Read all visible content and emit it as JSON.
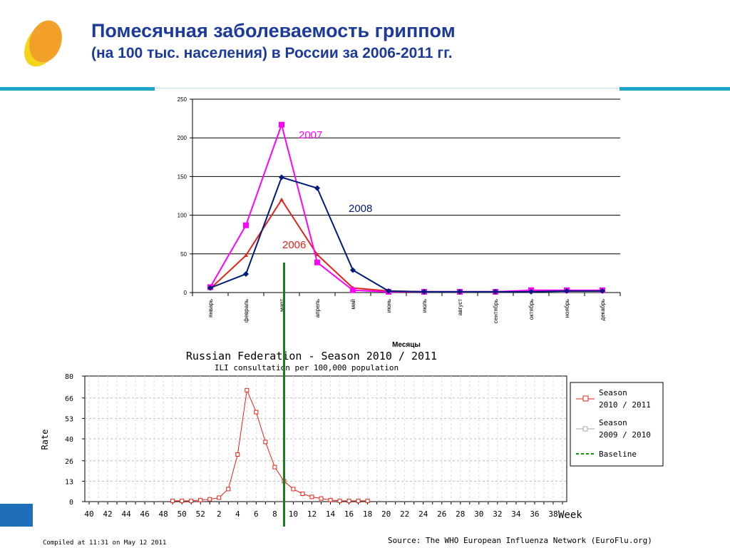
{
  "header": {
    "title": "Помесячная заболеваемость гриппом",
    "subtitle": "(на 100 тыс. населения) в России за 2006-2011 гг.",
    "logo_icon": "orange-yellow-leaf-logo"
  },
  "colors": {
    "title": "#1c3a9a",
    "band": "#1ea3c8",
    "series_2006": "#e2231a",
    "series_2007": "#ff00ff",
    "series_2008": "#001a7a",
    "season_2010_2011": "#e2231a",
    "season_2009_2010": "#aaaaaa",
    "baseline": "#009900",
    "marker_line": "#1e7d1e"
  },
  "chart_data": [
    {
      "type": "line",
      "title": "",
      "xlabel": "Месяцы",
      "ylabel": "",
      "ylim": [
        0,
        250
      ],
      "yticks": [
        "0",
        "50",
        "100",
        "150",
        "200",
        "250"
      ],
      "grid": "horizontal",
      "categories": [
        "январь",
        "февраль",
        "март",
        "апрель",
        "май",
        "июнь",
        "июль",
        "август",
        "сентябрь",
        "октябрь",
        "ноябрь",
        "декабрь"
      ],
      "series": [
        {
          "name": "2006",
          "values": [
            5,
            48,
            120,
            49,
            6,
            2,
            1,
            1,
            1,
            2,
            2,
            2
          ]
        },
        {
          "name": "2007",
          "values": [
            7,
            87,
            217,
            39,
            3,
            1,
            1,
            1,
            1,
            3,
            3,
            3
          ]
        },
        {
          "name": "2008",
          "values": [
            6,
            24,
            149,
            135,
            29,
            2,
            1,
            1,
            1,
            1,
            2,
            2
          ]
        }
      ]
    },
    {
      "type": "line",
      "title": "Russian Federation - Season 2010 / 2011",
      "subtitle": "ILI consultation per 100,000 population",
      "xlabel": "Week",
      "ylabel": "Rate",
      "ylim": [
        0,
        80
      ],
      "yticks": [
        "0",
        "13",
        "26",
        "40",
        "53",
        "66",
        "80"
      ],
      "xticks": [
        "40",
        "42",
        "44",
        "46",
        "48",
        "50",
        "52",
        "2",
        "4",
        "6",
        "8",
        "10",
        "12",
        "14",
        "16",
        "18",
        "20",
        "22",
        "24",
        "26",
        "28",
        "30",
        "32",
        "34",
        "36",
        "38"
      ],
      "grid": "dashed",
      "legend_position": "right",
      "legend": [
        "Season\n2010 / 2011",
        "Season\n2009 / 2010",
        "Baseline"
      ],
      "series": [
        {
          "name": "Season 2010 / 2011",
          "weeks": [
            "49",
            "50",
            "51",
            "52",
            "1",
            "2",
            "3",
            "4",
            "5",
            "6",
            "7",
            "8",
            "9",
            "10",
            "11",
            "12",
            "13",
            "14",
            "15",
            "16",
            "17",
            "18"
          ],
          "values": [
            0.5,
            0.5,
            0.5,
            1,
            1.5,
            2.5,
            8,
            30,
            71,
            57,
            38,
            22,
            13,
            8,
            5,
            3,
            2,
            1,
            0.5,
            0.5,
            0.5,
            0.5
          ]
        }
      ],
      "marker_week": "10"
    }
  ],
  "footer": {
    "compiled": "Compiled at 11:31 on May 12 2011",
    "source": "Source: The WHO European Influenza Network (EuroFlu.org)"
  }
}
